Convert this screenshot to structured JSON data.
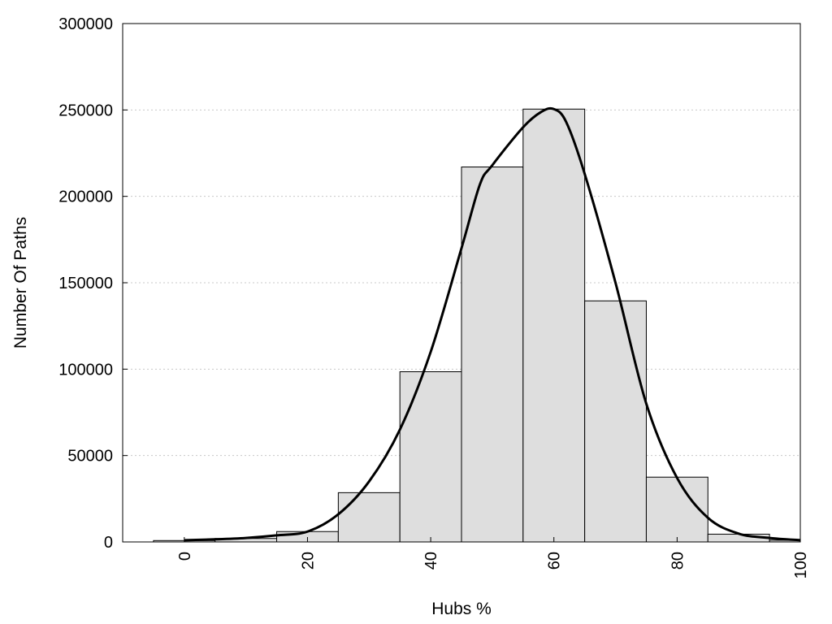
{
  "chart_data": {
    "type": "bar",
    "xlabel": "Hubs %",
    "ylabel": "Number Of Paths",
    "xlim": [
      -10,
      100
    ],
    "ylim": [
      0,
      300000
    ],
    "x_ticks": [
      0,
      20,
      40,
      60,
      80,
      100
    ],
    "y_ticks": [
      0,
      50000,
      100000,
      150000,
      200000,
      250000,
      300000
    ],
    "grid": "horizontal-dotted",
    "bars": [
      {
        "x0": -5,
        "x1": 5,
        "value": 800
      },
      {
        "x0": 5,
        "x1": 15,
        "value": 2000
      },
      {
        "x0": 15,
        "x1": 25,
        "value": 6000
      },
      {
        "x0": 25,
        "x1": 35,
        "value": 28500
      },
      {
        "x0": 35,
        "x1": 45,
        "value": 98500
      },
      {
        "x0": 45,
        "x1": 55,
        "value": 217000
      },
      {
        "x0": 55,
        "x1": 65,
        "value": 250500
      },
      {
        "x0": 65,
        "x1": 75,
        "value": 139500
      },
      {
        "x0": 75,
        "x1": 85,
        "value": 37500
      },
      {
        "x0": 85,
        "x1": 95,
        "value": 4500
      },
      {
        "x0": 95,
        "x1": 105,
        "value": 1000
      }
    ],
    "curve": {
      "x": [
        0,
        5,
        10,
        15,
        20,
        25,
        30,
        35,
        40,
        45,
        48,
        50,
        55,
        58,
        60,
        62,
        65,
        70,
        75,
        80,
        85,
        90,
        95,
        100
      ],
      "y": [
        1000,
        1500,
        2300,
        3800,
        6000,
        16000,
        35000,
        65000,
        110000,
        170000,
        207000,
        218000,
        240000,
        249000,
        250500,
        243000,
        213000,
        150000,
        80000,
        37000,
        14000,
        4800,
        2300,
        1000
      ]
    }
  }
}
